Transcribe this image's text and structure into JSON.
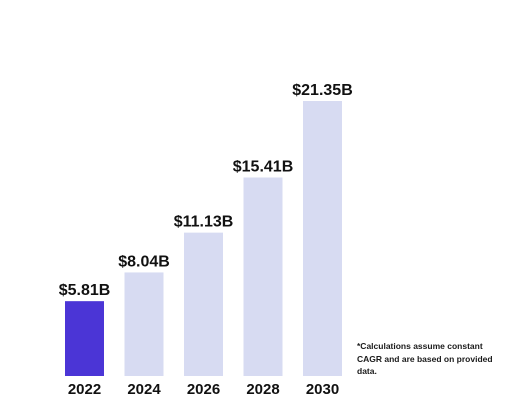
{
  "chart_data": {
    "type": "bar",
    "title": "",
    "xlabel": "",
    "ylabel": "",
    "categories": [
      "2022",
      "2024",
      "2026",
      "2028",
      "2030"
    ],
    "values": [
      5.81,
      8.04,
      11.13,
      15.41,
      21.35
    ],
    "data_labels": [
      "$5.81B",
      "$8.04B",
      "$11.13B",
      "$15.41B",
      "$21.35B"
    ],
    "highlight_index": 0,
    "ylim": [
      0,
      21.35
    ],
    "grid": false,
    "legend": "none",
    "colors": {
      "highlight": "#4b35d6",
      "default": "#d7dbf2"
    }
  },
  "footnote": "*Calculations assume constant CAGR and are based on provided data."
}
